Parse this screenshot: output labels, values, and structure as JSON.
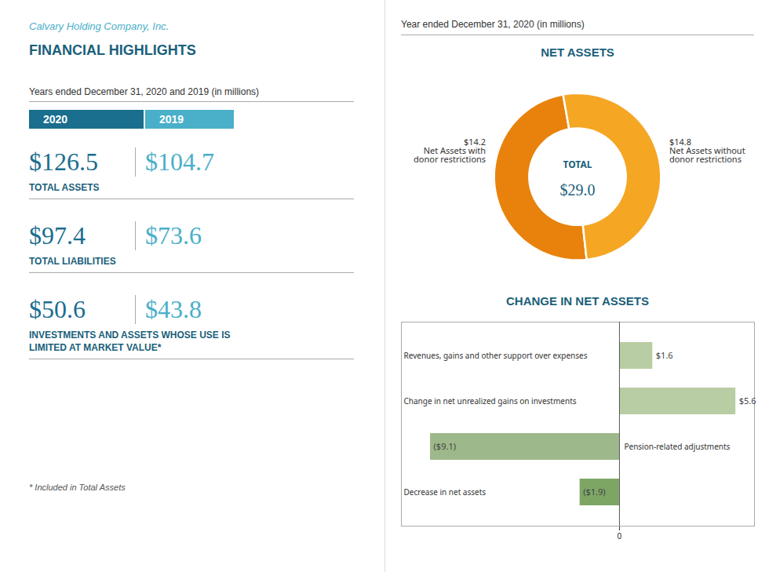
{
  "chart_data": [
    {
      "type": "table",
      "title": "FINANCIAL HIGHLIGHTS",
      "subtitle": "Years ended December 31, 2020 and 2019 (in millions)",
      "annotations": [
        "Calvary Holding Company, Inc.",
        "* Included in Total Assets"
      ],
      "categories": [
        "TOTAL ASSETS",
        "TOTAL LIABILITIES",
        "INVESTMENTS AND ASSETS WHOSE USE IS LIMITED AT MARKET VALUE*"
      ],
      "series": [
        {
          "name": "2020",
          "color": "#1a6e8e",
          "values": [
            126.5,
            97.4,
            50.6
          ],
          "value_labels": [
            "$126.5",
            "$97.4",
            "$50.6"
          ]
        },
        {
          "name": "2019",
          "color": "#4aafc9",
          "values": [
            104.7,
            73.6,
            43.8
          ],
          "value_labels": [
            "$104.7",
            "$73.6",
            "$43.8"
          ]
        }
      ],
      "data_labels": true
    },
    {
      "type": "pie",
      "title": "NET ASSETS",
      "subtitle": "Year ended December 31, 2020 (in millions)",
      "categories": [
        "Net Assets with donor restrictions",
        "Net Assets without donor restrictions"
      ],
      "values": [
        14.2,
        14.8
      ],
      "value_labels": [
        "$14.2",
        "$14.8"
      ],
      "colors": [
        "#e8820c",
        "#f5a623"
      ],
      "annotations": [
        "TOTAL",
        "$29.0"
      ],
      "data_labels": true
    },
    {
      "type": "bar",
      "orientation": "horizontal",
      "title": "CHANGE IN NET ASSETS",
      "categories": [
        "Revenues, gains and other support over expenses",
        "Change in net unrealized gains on investments",
        "Pension-related adjustments",
        "Decrease in net assets"
      ],
      "values": [
        1.6,
        5.6,
        -9.1,
        -1.9
      ],
      "value_labels": [
        "$1.6",
        "$5.6",
        "($9.1)",
        "($1.9)"
      ],
      "colors": [
        "#b8cda3",
        "#b8cda3",
        "#9db88a",
        "#7da665"
      ],
      "xlim": [
        -10.5,
        6.5
      ],
      "xticks": [
        0
      ],
      "tick_labels": "x",
      "data_labels": true
    }
  ]
}
